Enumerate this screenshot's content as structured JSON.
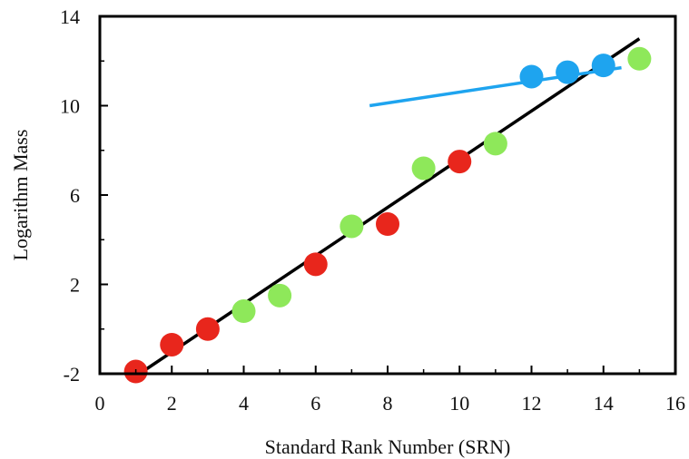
{
  "chart_data": {
    "type": "scatter",
    "title": "",
    "xlabel": "Standard Rank Number (SRN)",
    "ylabel": "Logarithm Mass",
    "xlim": [
      0,
      16
    ],
    "ylim": [
      -2,
      14
    ],
    "xticks": [
      0,
      2,
      4,
      6,
      8,
      10,
      12,
      14,
      16
    ],
    "yticks": [
      -2,
      2,
      6,
      10,
      14
    ],
    "grid": false,
    "series": [
      {
        "color": "#e8261c",
        "points": [
          {
            "x": 1,
            "y": -1.9
          },
          {
            "x": 2,
            "y": -0.7
          },
          {
            "x": 3,
            "y": 0.0
          },
          {
            "x": 6,
            "y": 2.9
          },
          {
            "x": 8,
            "y": 4.7
          },
          {
            "x": 10,
            "y": 7.5
          }
        ]
      },
      {
        "color": "#8ee85a",
        "points": [
          {
            "x": 4,
            "y": 0.8
          },
          {
            "x": 5,
            "y": 1.5
          },
          {
            "x": 7,
            "y": 4.6
          },
          {
            "x": 9,
            "y": 7.2
          },
          {
            "x": 11,
            "y": 8.3
          },
          {
            "x": 15,
            "y": 12.1
          }
        ]
      },
      {
        "color": "#1ea4ef",
        "points": [
          {
            "x": 12,
            "y": 11.3
          },
          {
            "x": 13,
            "y": 11.5
          },
          {
            "x": 14,
            "y": 11.8
          }
        ]
      }
    ],
    "lines": [
      {
        "color": "#000000",
        "x": [
          1.1,
          15
        ],
        "y": [
          -2,
          13
        ]
      },
      {
        "color": "#1ea4ef",
        "x": [
          7.5,
          14.5
        ],
        "y": [
          10,
          11.7
        ]
      }
    ]
  }
}
